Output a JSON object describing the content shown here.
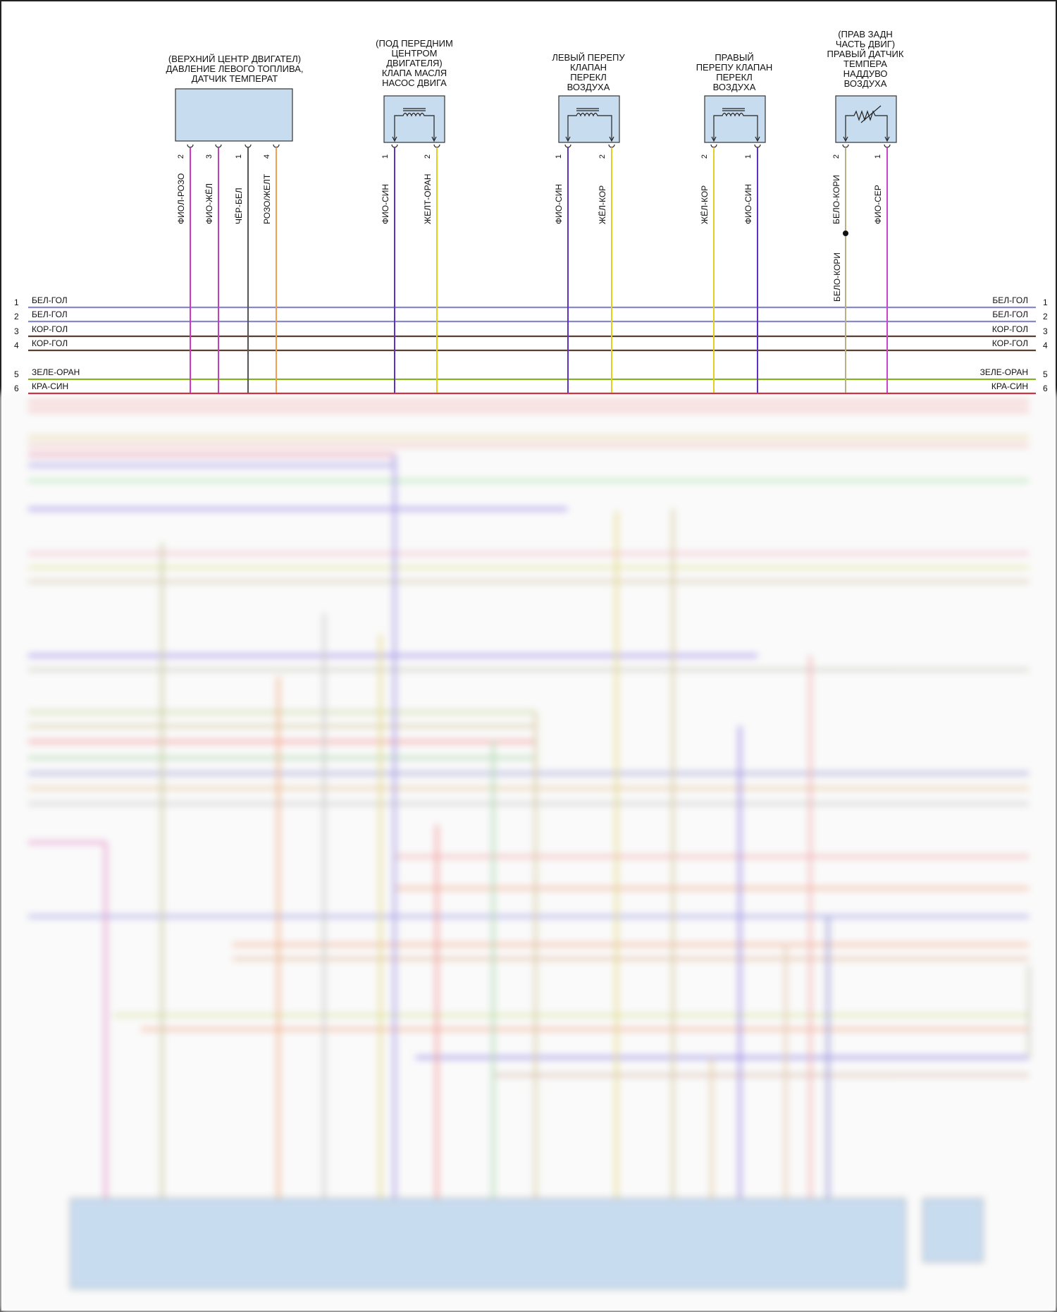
{
  "components": [
    {
      "id": "fuel",
      "title_lines": [
        "(ВЕРХНИЙ ЦЕНТР ДВИГАТЕЛ)",
        "ДАВЛЕНИЕ ЛЕВОГО ТОПЛИВА,",
        "ДАТЧИК ТЕМПЕРАТ"
      ],
      "pins": [
        {
          "num": "2",
          "wire": "ФИОЛ-РОЗО",
          "color": "#d633c8"
        },
        {
          "num": "3",
          "wire": "ФИО-ЖЁЛ",
          "color": "#c040c0"
        },
        {
          "num": "1",
          "wire": "ЧЁР-БЕЛ",
          "color": "#555555"
        },
        {
          "num": "4",
          "wire": "РОЗО/ЖЕЛТ",
          "color": "#f0a050"
        }
      ]
    },
    {
      "id": "oilpump",
      "title_lines": [
        "(ПОД ПЕРЕДНИМ",
        "ЦЕНТРОМ",
        "ДВИГАТЕЛЯ)",
        "КЛАПА МАСЛЯ",
        "НАСОС ДВИГА"
      ],
      "pins": [
        {
          "num": "1",
          "wire": "ФИО-СИН",
          "color": "#6030c0"
        },
        {
          "num": "2",
          "wire": "ЖЕЛТ-ОРАН",
          "color": "#e0d020"
        }
      ]
    },
    {
      "id": "leftbypass",
      "title_lines": [
        "ЛЕВЫЙ ПЕРЕПУ",
        "КЛАПАН",
        "ПЕРЕКЛ",
        "ВОЗДУХА"
      ],
      "pins": [
        {
          "num": "1",
          "wire": "ФИО-СИН",
          "color": "#6030c0"
        },
        {
          "num": "2",
          "wire": "ЖЁЛ-КОР",
          "color": "#e0d020"
        }
      ]
    },
    {
      "id": "rightbypass",
      "title_lines": [
        "ПРАВЫЙ",
        "ПЕРЕПУ КЛАПАН",
        "ПЕРЕКЛ",
        "ВОЗДУХА"
      ],
      "pins": [
        {
          "num": "2",
          "wire": "ЖЁЛ-КОР",
          "color": "#e0d020"
        },
        {
          "num": "1",
          "wire": "ФИО-СИН",
          "color": "#6030c0"
        }
      ]
    },
    {
      "id": "boosttemp",
      "title_lines": [
        "(ПРАВ ЗАДН",
        "ЧАСТЬ ДВИГ)",
        "ПРАВЫЙ ДАТЧИК",
        "ТЕМПЕРА",
        "НАДДУВО",
        "ВОЗДУХА"
      ],
      "pins": [
        {
          "num": "2",
          "wire": "БЕЛО-КОРИ",
          "color": "#b8b088"
        },
        {
          "num": "1",
          "wire": "ФИО-СЕР",
          "color": "#cc44cc"
        }
      ]
    }
  ],
  "splice_label": "БЕЛО-КОРИ",
  "bus": [
    {
      "num": "1",
      "name": "БЕЛ-ГОЛ",
      "color": "#8888cc"
    },
    {
      "num": "2",
      "name": "БЕЛ-ГОЛ",
      "color": "#8888cc"
    },
    {
      "num": "3",
      "name": "КОР-ГОЛ",
      "color": "#5a4030"
    },
    {
      "num": "4",
      "name": "КОР-ГОЛ",
      "color": "#5a4030"
    },
    {
      "num": "5",
      "name": "ЗЕЛЕ-ОРАН",
      "color": "#88b020"
    },
    {
      "num": "6",
      "name": "КРА-СИН",
      "color": "#cc3344"
    }
  ]
}
